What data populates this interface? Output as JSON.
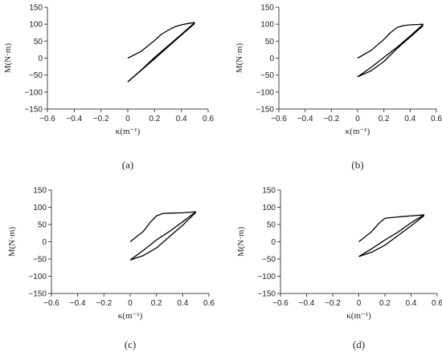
{
  "figure": {
    "panels": [
      "(a)",
      "(b)",
      "(c)",
      "(d)"
    ]
  },
  "chart_data": [
    {
      "type": "line",
      "panel_label": "(a)",
      "xlabel": "κ(m⁻¹)",
      "ylabel": "M(N·m)",
      "xlim": [
        -0.6,
        0.6
      ],
      "ylim": [
        -150,
        150
      ],
      "xticks": [
        "−0.6",
        "−0.4",
        "−0.2",
        "0",
        "0.2",
        "0.4",
        "0.6"
      ],
      "yticks": [
        "150",
        "100",
        "50",
        "0",
        "−50",
        "−100",
        "−150"
      ],
      "grid": false,
      "series": [
        {
          "x": [
            0,
            0.1,
            0.2,
            0.25,
            0.3,
            0.35,
            0.4,
            0.45,
            0.5
          ],
          "y": [
            0,
            20,
            52,
            70,
            82,
            92,
            98,
            102,
            105
          ]
        },
        {
          "x": [
            0.5,
            0.4,
            0.3,
            0.2,
            0.1,
            0.0
          ],
          "y": [
            105,
            70,
            36,
            2,
            -35,
            -70
          ]
        },
        {
          "x": [
            0.0,
            0.1,
            0.2,
            0.3,
            0.4,
            0.5
          ],
          "y": [
            -70,
            -36,
            -2,
            33,
            68,
            102
          ]
        }
      ]
    },
    {
      "type": "line",
      "panel_label": "(b)",
      "xlabel": "κ(m⁻¹)",
      "ylabel": "M(N·m)",
      "xlim": [
        -0.6,
        0.6
      ],
      "ylim": [
        -150,
        150
      ],
      "xticks": [
        "−0.6",
        "−0.4",
        "−0.2",
        "0",
        "0.2",
        "0.4",
        "0.6"
      ],
      "yticks": [
        "150",
        "100",
        "50",
        "0",
        "−50",
        "−100",
        "−150"
      ],
      "grid": false,
      "series": [
        {
          "x": [
            0,
            0.1,
            0.2,
            0.25,
            0.3,
            0.35,
            0.4,
            0.45,
            0.5
          ],
          "y": [
            0,
            22,
            55,
            75,
            90,
            96,
            98,
            99,
            100
          ]
        },
        {
          "x": [
            0.5,
            0.4,
            0.3,
            0.2,
            0.1,
            0.0
          ],
          "y": [
            100,
            65,
            32,
            2,
            -28,
            -55
          ]
        },
        {
          "x": [
            0.0,
            0.1,
            0.2,
            0.3,
            0.4,
            0.5
          ],
          "y": [
            -55,
            -38,
            -10,
            28,
            62,
            96
          ]
        }
      ]
    },
    {
      "type": "line",
      "panel_label": "(c)",
      "xlabel": "κ(m⁻¹)",
      "ylabel": "M(N·m)",
      "xlim": [
        -0.6,
        0.6
      ],
      "ylim": [
        -150,
        150
      ],
      "xticks": [
        "−0.6",
        "−0.4",
        "−0.2",
        "0",
        "0.2",
        "0.4",
        "0.6"
      ],
      "yticks": [
        "150",
        "100",
        "50",
        "0",
        "−50",
        "−100",
        "−150"
      ],
      "grid": false,
      "series": [
        {
          "x": [
            0,
            0.1,
            0.15,
            0.2,
            0.25,
            0.3,
            0.4,
            0.5
          ],
          "y": [
            0,
            30,
            55,
            75,
            82,
            83,
            84,
            87
          ]
        },
        {
          "x": [
            0.5,
            0.4,
            0.3,
            0.2,
            0.1,
            0.0
          ],
          "y": [
            87,
            58,
            30,
            5,
            -25,
            -53
          ]
        },
        {
          "x": [
            0.0,
            0.1,
            0.2,
            0.3,
            0.4,
            0.5
          ],
          "y": [
            -53,
            -40,
            -18,
            15,
            48,
            85
          ]
        }
      ]
    },
    {
      "type": "line",
      "panel_label": "(d)",
      "xlabel": "κ(m⁻¹)",
      "ylabel": "M(N·m)",
      "xlim": [
        -0.6,
        0.6
      ],
      "ylim": [
        -150,
        150
      ],
      "xticks": [
        "−0.6",
        "−0.4",
        "−0.2",
        "0",
        "0.2",
        "0.4",
        "0.6"
      ],
      "yticks": [
        "150",
        "100",
        "50",
        "0",
        "−50",
        "−100",
        "−150"
      ],
      "grid": false,
      "series": [
        {
          "x": [
            0,
            0.1,
            0.15,
            0.2,
            0.3,
            0.4,
            0.5
          ],
          "y": [
            0,
            30,
            52,
            68,
            72,
            75,
            78
          ]
        },
        {
          "x": [
            0.5,
            0.4,
            0.3,
            0.2,
            0.1,
            0.0
          ],
          "y": [
            78,
            55,
            28,
            5,
            -20,
            -43
          ]
        },
        {
          "x": [
            0.0,
            0.1,
            0.2,
            0.3,
            0.4,
            0.5
          ],
          "y": [
            -43,
            -30,
            -10,
            18,
            46,
            76
          ]
        }
      ]
    }
  ]
}
